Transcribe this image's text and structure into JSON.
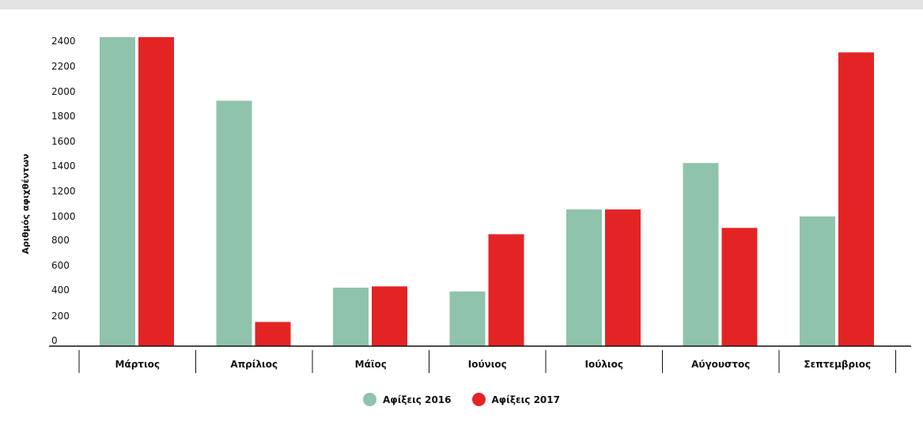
{
  "chart_data": {
    "type": "bar",
    "title": "",
    "xlabel": "",
    "ylabel": "Αριθμός αφιχθέντων",
    "categories": [
      "Μάρτιος",
      "Απρίλιος",
      "Μάϊος",
      "Ιούνιος",
      "Ιούλιος",
      "Αύγουστος",
      "Σεπτεμβριος"
    ],
    "series": [
      {
        "name": "Αφίξεις 2016",
        "color": "#8fc3ac",
        "values": [
          2430,
          1930,
          460,
          430,
          1075,
          1440,
          1020
        ]
      },
      {
        "name": "Αφίξεις 2017",
        "color": "#e42424",
        "values": [
          2430,
          190,
          470,
          880,
          1075,
          930,
          2310
        ]
      }
    ],
    "yticks": [
      {
        "value": 0,
        "label": "0"
      },
      {
        "value": 200,
        "label": "200"
      },
      {
        "value": 400,
        "label": "400"
      },
      {
        "value": 600,
        "label": "600"
      },
      {
        "value": 800,
        "label": "800"
      },
      {
        "value": 1000,
        "label": "1000"
      },
      {
        "value": 1200,
        "label": "1200"
      },
      {
        "value": 1400,
        "label": "1400"
      },
      {
        "value": 1600,
        "label": "1600"
      },
      {
        "value": 1800,
        "label": "1800"
      },
      {
        "value": 2000,
        "label": "2000"
      },
      {
        "value": 2200,
        "label": "2200"
      },
      {
        "value": 2400,
        "label": "2400"
      }
    ],
    "ylim": [
      0,
      2430
    ],
    "grid": false,
    "legend_position": "bottom-center"
  }
}
